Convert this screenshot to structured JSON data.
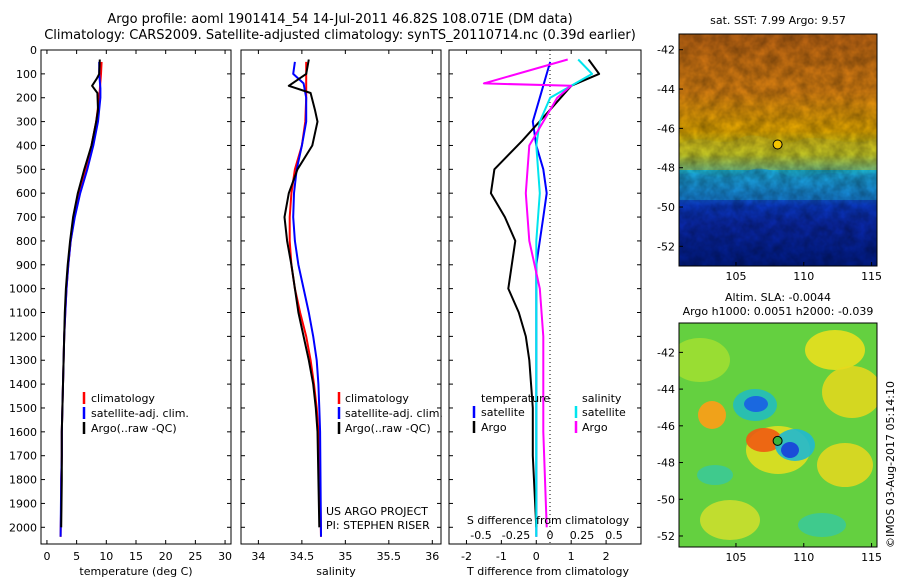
{
  "header": {
    "title_line1": "Argo profile: aoml 1901414_54 14-Jul-2011 46.82S 108.071E (DM data)",
    "title_line2": "Climatology: CARS2009. Satellite-adjusted climatology: synTS_20110714.nc (0.39d earlier)"
  },
  "credit": "©IMOS 03-Aug-2017 05:14:10",
  "colors": {
    "climatology": "#ff0000",
    "satellite": "#0000ff",
    "argo": "#000000",
    "s_satellite": "#00e5ee",
    "s_argo": "#ff00ff"
  },
  "chart_data": [
    {
      "type": "line",
      "xlabel": "temperature (deg C)",
      "xlim": [
        -1,
        31
      ],
      "xticks": [
        0,
        5,
        10,
        15,
        20,
        25,
        30
      ],
      "ylim": [
        2070,
        0
      ],
      "yticks": [
        0,
        100,
        200,
        300,
        400,
        500,
        600,
        700,
        800,
        900,
        1000,
        1100,
        1200,
        1300,
        1400,
        1500,
        1600,
        1700,
        1800,
        1900,
        2000
      ],
      "legend": [
        "climatology",
        "satellite-adj. clim.",
        "Argo(..raw -QC)"
      ],
      "series": [
        {
          "name": "climatology",
          "color": "#ff0000",
          "x": [
            9.2,
            9.1,
            8.8,
            8.3,
            7.5,
            6.5,
            5.4,
            4.6,
            4.0,
            3.6,
            3.3,
            3.1,
            2.9,
            2.8,
            2.7,
            2.6,
            2.5,
            2.5,
            2.4,
            2.4,
            2.3
          ],
          "y": [
            50,
            100,
            200,
            300,
            400,
            500,
            600,
            700,
            800,
            900,
            1000,
            1100,
            1200,
            1300,
            1400,
            1500,
            1600,
            1700,
            1800,
            1900,
            2040
          ]
        },
        {
          "name": "satellite-adj. clim.",
          "color": "#0000ff",
          "x": [
            8.8,
            8.8,
            9.0,
            9.0,
            8.6,
            7.8,
            6.8,
            5.6,
            4.7,
            4.0,
            3.6,
            3.3,
            3.1,
            2.9,
            2.8,
            2.7,
            2.6,
            2.5,
            2.5,
            2.4,
            2.3
          ],
          "y": [
            50,
            100,
            160,
            200,
            300,
            400,
            500,
            600,
            700,
            800,
            900,
            1000,
            1100,
            1200,
            1300,
            1400,
            1500,
            1600,
            1700,
            1800,
            2040
          ]
        },
        {
          "name": "Argo(..raw -QC)",
          "color": "#000000",
          "x": [
            8.9,
            8.8,
            8.4,
            7.6,
            8.5,
            8.6,
            8.3,
            7.5,
            6.3,
            5.2,
            4.4,
            3.9,
            3.5,
            3.2,
            3.0,
            2.9,
            2.8,
            2.7,
            2.6,
            2.5,
            2.5,
            2.4
          ],
          "y": [
            40,
            100,
            120,
            150,
            180,
            250,
            300,
            400,
            500,
            600,
            700,
            800,
            900,
            1000,
            1100,
            1200,
            1300,
            1400,
            1500,
            1600,
            1800,
            2000
          ]
        }
      ]
    },
    {
      "type": "line",
      "xlabel": "salinity",
      "xlim": [
        33.8,
        36.1
      ],
      "xticks": [
        34,
        34.5,
        35,
        35.5,
        36
      ],
      "ylim": [
        2070,
        0
      ],
      "legend": [
        "climatology",
        "satellite-adj. clim.",
        "Argo(..raw -QC)"
      ],
      "annotations": [
        "US ARGO PROJECT",
        "PI: STEPHEN RISER"
      ],
      "series": [
        {
          "name": "climatology",
          "color": "#ff0000",
          "x": [
            34.55,
            34.55,
            34.54,
            34.5,
            34.42,
            34.38,
            34.36,
            34.36,
            34.38,
            34.42,
            34.48,
            34.55,
            34.6,
            34.64,
            34.67,
            34.69,
            34.7,
            34.71,
            34.72
          ],
          "y": [
            50,
            200,
            300,
            400,
            500,
            600,
            700,
            800,
            900,
            1000,
            1100,
            1200,
            1300,
            1400,
            1500,
            1600,
            1700,
            1800,
            2040
          ]
        },
        {
          "name": "satellite-adj. clim.",
          "color": "#0000ff",
          "x": [
            34.42,
            34.4,
            34.52,
            34.55,
            34.55,
            34.5,
            34.44,
            34.41,
            34.4,
            34.42,
            34.46,
            34.52,
            34.58,
            34.63,
            34.67,
            34.69,
            34.7,
            34.71,
            34.72
          ],
          "y": [
            50,
            100,
            140,
            200,
            300,
            400,
            500,
            600,
            700,
            800,
            900,
            1000,
            1100,
            1200,
            1300,
            1400,
            1500,
            1600,
            2040
          ]
        },
        {
          "name": "Argo(..raw -QC)",
          "color": "#000000",
          "x": [
            34.58,
            34.55,
            34.35,
            34.6,
            34.65,
            34.68,
            34.62,
            34.45,
            34.35,
            34.3,
            34.33,
            34.38,
            34.42,
            34.46,
            34.52,
            34.58,
            34.63,
            34.66,
            34.68,
            34.69,
            34.7
          ],
          "y": [
            40,
            100,
            150,
            180,
            250,
            300,
            400,
            500,
            600,
            700,
            800,
            900,
            1000,
            1100,
            1200,
            1300,
            1400,
            1500,
            1600,
            1800,
            2000
          ]
        }
      ]
    },
    {
      "type": "line",
      "xlabel": "T difference from climatology",
      "top_xlabel": "S difference from climatology",
      "xlim": [
        -2.5,
        3
      ],
      "xticks": [
        -2,
        -1,
        0,
        1,
        2
      ],
      "top_xticks": [
        "-0.5",
        "-0.25",
        "0",
        "0.25",
        "0.5"
      ],
      "ylim": [
        2070,
        0
      ],
      "legend_headers": [
        "temperature",
        "salinity"
      ],
      "legend": [
        "satellite",
        "Argo",
        "satellite",
        "Argo"
      ],
      "series": [
        {
          "name": "satellite",
          "color": "#0000ff",
          "x": [
            0.4,
            0.3,
            0.1,
            -0.1,
            0.0,
            0.2,
            0.3,
            0.2,
            0.1,
            0.0,
            0.0,
            0.0,
            0.0,
            0.0
          ],
          "y": [
            50,
            100,
            200,
            300,
            400,
            500,
            600,
            700,
            800,
            900,
            1000,
            1200,
            1500,
            2040
          ]
        },
        {
          "name": "Argo",
          "color": "#000000",
          "x": [
            1.5,
            1.8,
            1.0,
            0.4,
            -0.4,
            -1.2,
            -1.3,
            -0.9,
            -0.6,
            -0.8,
            -0.5,
            -0.3,
            -0.2,
            -0.1,
            -0.1,
            0.0
          ],
          "y": [
            40,
            100,
            150,
            250,
            380,
            500,
            600,
            700,
            800,
            1000,
            1100,
            1200,
            1300,
            1500,
            1700,
            2000
          ]
        },
        {
          "name": "satellite",
          "color": "#00e5ee",
          "x": [
            1.2,
            1.6,
            0.4,
            0.1,
            0.0,
            0.1,
            0.0,
            0.0,
            0.0,
            0.0,
            0.0
          ],
          "y": [
            40,
            100,
            200,
            300,
            400,
            600,
            800,
            1000,
            1200,
            1600,
            2040
          ]
        },
        {
          "name": "Argo",
          "color": "#ff00ff",
          "x": [
            0.9,
            -1.5,
            1.0,
            0.6,
            0.2,
            -0.2,
            -0.3,
            -0.2,
            0.1,
            0.2,
            0.2,
            0.3
          ],
          "y": [
            40,
            140,
            150,
            200,
            300,
            400,
            600,
            800,
            1000,
            1200,
            1600,
            2000
          ]
        }
      ]
    },
    {
      "type": "heatmap",
      "title": "sat. SST: 7.99 Argo: 9.57",
      "xticks": [
        105,
        110,
        115
      ],
      "yticks": [
        -42,
        -44,
        -46,
        -48,
        -50,
        -52
      ],
      "float_position": [
        108.071,
        -46.82
      ]
    },
    {
      "type": "heatmap",
      "title": "Altim. SLA: -0.0044",
      "subtitle": "Argo h1000: 0.0051 h2000: -0.039",
      "xticks": [
        105,
        110,
        115
      ],
      "yticks": [
        -42,
        -44,
        -46,
        -48,
        -50,
        -52
      ],
      "float_position": [
        108.071,
        -46.82
      ]
    }
  ]
}
